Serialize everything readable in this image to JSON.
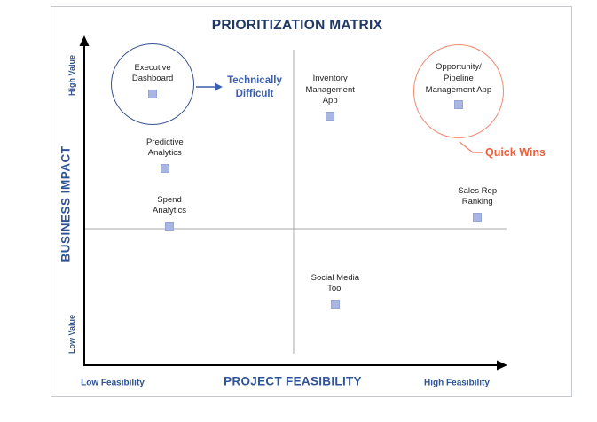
{
  "title": "PRIORITIZATION MATRIX",
  "axes": {
    "y_label": "BUSINESS IMPACT",
    "y_top": "High Value",
    "y_bottom": "Low Value",
    "x_label": "PROJECT FEASIBILITY",
    "x_left": "Low Feasibility",
    "x_right": "High Feasibility"
  },
  "annotations": {
    "technically_difficult": "Technically\nDifficult",
    "quick_wins": "Quick Wins"
  },
  "colors": {
    "title_text": "#1f3864",
    "axis_text": "#2e5396",
    "label_text": "#222222",
    "divider": "#a8a8a8",
    "box_border": "#c6cacf",
    "point_fill": "#a9b5e2",
    "point_border": "#97a6d8",
    "technically_difficult": "#3a5fae",
    "quick_wins": "#ee5f3b",
    "circle_blue": "#36508e",
    "circle_orange": "#ef8b72"
  },
  "chart_data": {
    "type": "scatter",
    "title": "PRIORITIZATION MATRIX",
    "xlabel": "PROJECT FEASIBILITY",
    "ylabel": "BUSINESS IMPACT",
    "x_axis_endpoints": [
      "Low Feasibility",
      "High Feasibility"
    ],
    "y_axis_endpoints": [
      "Low Value",
      "High Value"
    ],
    "layout": "2x2 quadrant matrix with gray divider lines",
    "points": [
      {
        "label": "Executive\nDashboard",
        "x": 0.163,
        "y": 0.834,
        "circled": "blue",
        "annotation": "Technically Difficult"
      },
      {
        "label": "Predictive\nAnalytics",
        "x": 0.192,
        "y": 0.605
      },
      {
        "label": "Spend\nAnalytics",
        "x": 0.203,
        "y": 0.428
      },
      {
        "label": "Inventory\nManagement\nApp",
        "x": 0.586,
        "y": 0.766
      },
      {
        "label": "Opportunity/\nPipeline\nManagement App",
        "x": 0.892,
        "y": 0.801,
        "circled": "orange",
        "annotation": "Quick Wins"
      },
      {
        "label": "Sales Rep\nRanking",
        "x": 0.937,
        "y": 0.455
      },
      {
        "label": "Social Media\nTool",
        "x": 0.598,
        "y": 0.188
      }
    ]
  }
}
